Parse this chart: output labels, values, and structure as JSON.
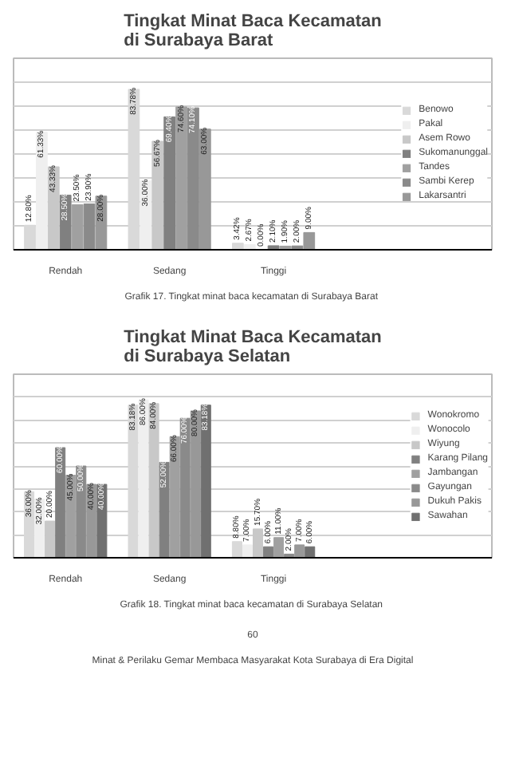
{
  "chart_data": [
    {
      "type": "bar",
      "title": "Tingkat Minat Baca Kecamatan di Surabaya Barat",
      "categories": [
        "Rendah",
        "Sedang",
        "Tinggi"
      ],
      "ylim": [
        0,
        100
      ],
      "yticks": [
        {
          "value": 0,
          "label": null
        },
        {
          "value": 12.5,
          "label": null
        },
        {
          "value": 25,
          "label": null
        },
        {
          "value": 37.5,
          "label": null
        },
        {
          "value": 50,
          "label": null
        },
        {
          "value": 62.5,
          "label": null
        },
        {
          "value": 75,
          "label": null
        },
        {
          "value": 87.5,
          "label": null
        },
        {
          "value": 100,
          "label": null
        }
      ],
      "tick_labels": "x",
      "grid": "y",
      "legend": "right",
      "series": [
        {
          "name": "Benowo",
          "color": "#d9d9d9",
          "values": [
            12.8,
            83.78,
            3.42
          ],
          "value_labels": [
            "12.80%",
            "83.78%",
            "3.42%"
          ]
        },
        {
          "name": "Pakal",
          "color": "#efefef",
          "values": [
            61.33,
            36.0,
            2.67
          ],
          "value_labels": [
            "61.33%",
            "36.00%",
            "2.67%"
          ]
        },
        {
          "name": "Asem Rowo",
          "color": "#c8c8c8",
          "values": [
            43.33,
            56.67,
            0.0
          ],
          "value_labels": [
            "43.33%",
            "56.67%",
            "0.00%"
          ]
        },
        {
          "name": "Sukomanunggal",
          "color": "#808080",
          "values": [
            28.5,
            69.4,
            2.1
          ],
          "value_labels": [
            "28.50%",
            "69.40%",
            "2.10%"
          ]
        },
        {
          "name": "Tandes",
          "color": "#a0a0a0",
          "values": [
            23.5,
            74.6,
            1.9
          ],
          "value_labels": [
            "23.50%",
            "74.60%",
            "1.90%"
          ]
        },
        {
          "name": "Sambi Kerep",
          "color": "#8a8a8a",
          "values": [
            23.9,
            74.1,
            2.0
          ],
          "value_labels": [
            "23.90%",
            "74.10%",
            "2.00%"
          ]
        },
        {
          "name": "Lakarsantri",
          "color": "#989898",
          "values": [
            28.0,
            63.0,
            9.0
          ],
          "value_labels": [
            "28.00%",
            "63.00%",
            "9.00%"
          ]
        }
      ],
      "annotations": [
        "Grafik 17.  Tingkat minat baca kecamatan di Surabaya Barat"
      ]
    },
    {
      "type": "bar",
      "title": "Tingkat Minat Baca Kecamatan di Surabaya Selatan",
      "categories": [
        "Rendah",
        "Sedang",
        "Tinggi"
      ],
      "ylim": [
        0,
        100
      ],
      "yticks": [
        {
          "value": 0,
          "label": null
        },
        {
          "value": 12.5,
          "label": null
        },
        {
          "value": 25,
          "label": null
        },
        {
          "value": 37.5,
          "label": null
        },
        {
          "value": 50,
          "label": null
        },
        {
          "value": 62.5,
          "label": null
        },
        {
          "value": 75,
          "label": null
        },
        {
          "value": 87.5,
          "label": null
        },
        {
          "value": 100,
          "label": null
        }
      ],
      "tick_labels": "x",
      "grid": "y",
      "legend": "right",
      "series": [
        {
          "name": "Wonokromo",
          "color": "#d9d9d9",
          "values": [
            36.0,
            83.18,
            8.8
          ],
          "value_labels": [
            "36.00%",
            "83.18%",
            "8.80%"
          ]
        },
        {
          "name": "Wonocolo",
          "color": "#efefef",
          "values": [
            32.0,
            86.0,
            7.0
          ],
          "value_labels": [
            "32.00%",
            "86.00%",
            "7.00%"
          ]
        },
        {
          "name": "Wiyung",
          "color": "#c8c8c8",
          "values": [
            20.0,
            84.0,
            15.7
          ],
          "value_labels": [
            "20.00%",
            "84.00%",
            "15.70%"
          ]
        },
        {
          "name": "Karang Pilang",
          "color": "#808080",
          "values": [
            60.0,
            52.0,
            6.0
          ],
          "value_labels": [
            "60.00%",
            "52.00%",
            "6.00%"
          ]
        },
        {
          "name": "Jambangan",
          "color": "#a0a0a0",
          "values": [
            45.0,
            66.0,
            11.0
          ],
          "value_labels": [
            "45.00%",
            "66.00%",
            "11.00%"
          ]
        },
        {
          "name": "Gayungan",
          "color": "#8a8a8a",
          "values": [
            50.0,
            76.0,
            2.0
          ],
          "value_labels": [
            "50.00%",
            "76.00%",
            "2.00%"
          ]
        },
        {
          "name": "Dukuh Pakis",
          "color": "#989898",
          "values": [
            40.0,
            80.0,
            7.0
          ],
          "value_labels": [
            "40.00%",
            "80.00%",
            "7.00%"
          ]
        },
        {
          "name": "Sawahan",
          "color": "#707070",
          "values": [
            40.0,
            83.18,
            6.0
          ],
          "value_labels": [
            "40.00%",
            "83.18%",
            "6.00%"
          ]
        }
      ],
      "annotations": [
        "Grafik 18.  Tingkat minat baca kecamatan di Surabaya Selatan",
        "60",
        "Minat & Perilaku Gemar Membaca Masyarakat Kota Surabaya di Era Digital"
      ]
    }
  ]
}
